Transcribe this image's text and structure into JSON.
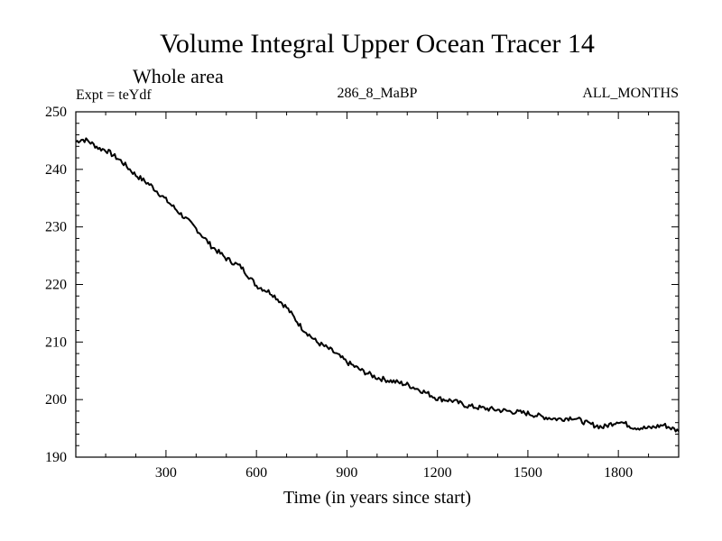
{
  "chart_data": {
    "type": "line",
    "title": "Volume Integral Upper Ocean Tracer 14",
    "subtitle": "Whole area",
    "experiment_label": "Expt = teYdf",
    "run_label": "286_8_MaBP",
    "months_label": "ALL_MONTHS",
    "xlabel": "Time (in years since start)",
    "ylabel": "",
    "xlim": [
      1,
      2000
    ],
    "ylim": [
      190,
      250
    ],
    "x_ticks": [
      300,
      600,
      900,
      1200,
      1500,
      1800
    ],
    "x_tick_labels": [
      "300",
      "600",
      "900",
      "1200",
      "1500",
      "1800"
    ],
    "y_ticks": [
      190,
      200,
      210,
      220,
      230,
      240,
      250
    ],
    "y_tick_labels": [
      "190",
      "200",
      "210",
      "220",
      "230",
      "240",
      "250"
    ],
    "series": [
      {
        "name": "Volume Integral Upper Ocean Tracer 14",
        "color": "#000000",
        "x": [
          1,
          20,
          40,
          60,
          80,
          100,
          150,
          200,
          250,
          300,
          350,
          400,
          450,
          500,
          550,
          600,
          650,
          700,
          750,
          800,
          850,
          900,
          950,
          1000,
          1050,
          1100,
          1150,
          1200,
          1250,
          1300,
          1350,
          1400,
          1450,
          1500,
          1550,
          1600,
          1650,
          1700,
          1750,
          1800,
          1850,
          1900,
          1950,
          2000
        ],
        "y": [
          244.8,
          245.2,
          245.0,
          244.3,
          243.6,
          243.4,
          241.5,
          239.0,
          237.2,
          234.7,
          232.2,
          229.7,
          226.7,
          224.5,
          223.0,
          219.8,
          218.5,
          216.0,
          212.5,
          210.0,
          208.5,
          206.5,
          205.0,
          203.8,
          203.2,
          202.6,
          201.5,
          200.2,
          199.8,
          198.9,
          198.5,
          198.2,
          197.9,
          197.6,
          197.0,
          196.6,
          196.9,
          195.8,
          195.2,
          196.3,
          195.2,
          195.0,
          195.6,
          194.5
        ]
      }
    ]
  }
}
